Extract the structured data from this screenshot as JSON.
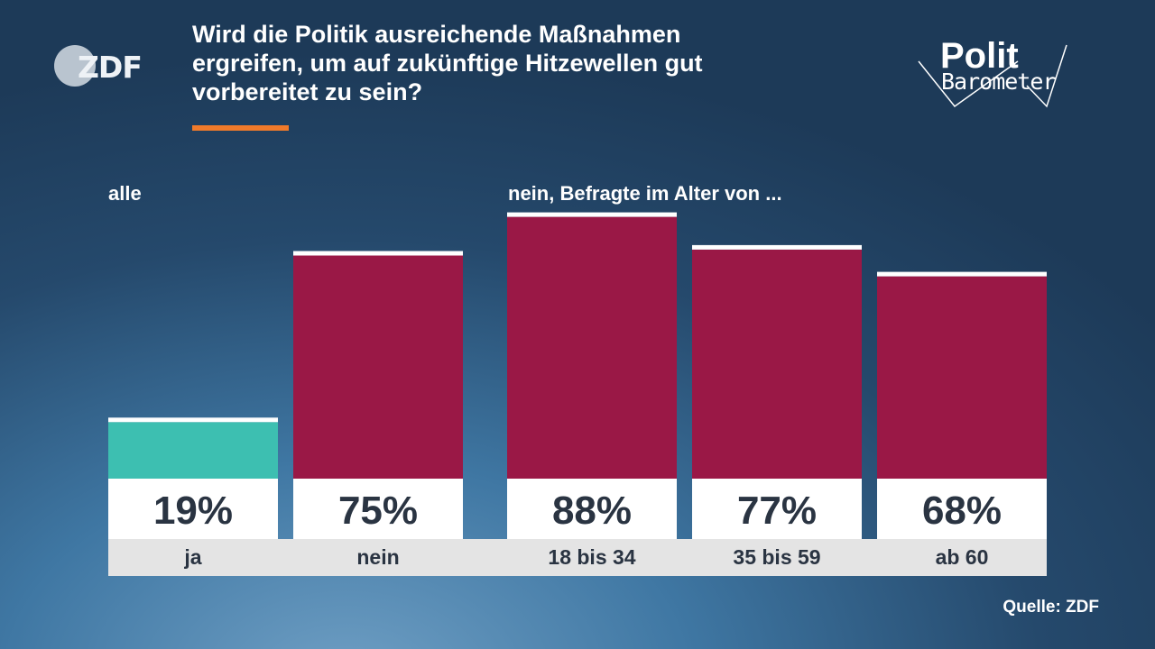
{
  "header": {
    "logo_text": "ZDF",
    "title": "Wird die Politik ausreichende Maßnahmen\nergreifen, um auf zukünftige Hitzewellen gut\nvorbereitet zu sein?",
    "brand_line1": "Polit",
    "brand_line2": "Barometer"
  },
  "colors": {
    "accent": "#f07a2a",
    "yes": "#3dbfb1",
    "no": "#9a1846",
    "value_box": "#ffffff",
    "label_box": "#e4e4e4",
    "text_dark": "#2a3442"
  },
  "groups": {
    "left": "alle",
    "right": "nein, Befragte im Alter von ..."
  },
  "chart_data": {
    "type": "bar",
    "title": "Wird die Politik ausreichende Maßnahmen ergreifen, um auf zukünftige Hitzewellen gut vorbereitet zu sein?",
    "categories": [
      "ja",
      "nein",
      "18 bis 34",
      "35 bis 59",
      "ab 60"
    ],
    "values": [
      19,
      75,
      88,
      77,
      68
    ],
    "value_labels": [
      "19%",
      "75%",
      "88%",
      "77%",
      "68%"
    ],
    "bar_colors": [
      "#3dbfb1",
      "#9a1846",
      "#9a1846",
      "#9a1846",
      "#9a1846"
    ],
    "group_labels": [
      "alle",
      "nein, Befragte im Alter von ..."
    ],
    "ylim": [
      0,
      100
    ],
    "xlabel": "",
    "ylabel": "",
    "grid": false
  },
  "footer": {
    "source": "Quelle: ZDF"
  }
}
